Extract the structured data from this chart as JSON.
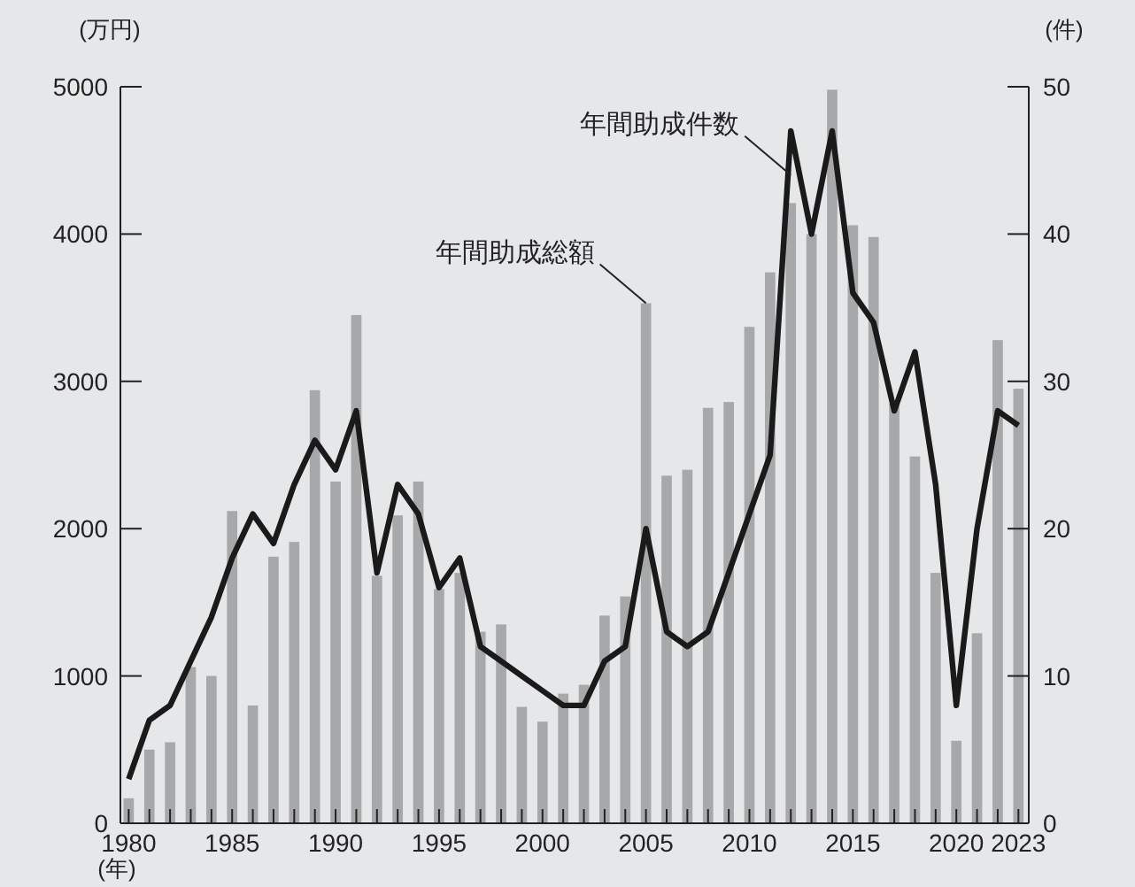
{
  "chart_data": {
    "type": "bar",
    "xlabel": "(年)",
    "ylabel": "(万円)",
    "y2label": "(件)",
    "x": [
      1980,
      1981,
      1982,
      1983,
      1984,
      1985,
      1986,
      1987,
      1988,
      1989,
      1990,
      1991,
      1992,
      1993,
      1994,
      1995,
      1996,
      1997,
      1998,
      1999,
      2000,
      2001,
      2002,
      2003,
      2004,
      2005,
      2006,
      2007,
      2008,
      2009,
      2010,
      2011,
      2012,
      2013,
      2014,
      2015,
      2016,
      2017,
      2018,
      2019,
      2020,
      2021,
      2022,
      2023
    ],
    "series": [
      {
        "color": "#a7a8aa",
        "values": [
          170,
          500,
          550,
          1060,
          1000,
          2120,
          800,
          1810,
          1910,
          2940,
          2320,
          3450,
          1680,
          2090,
          2320,
          1590,
          1700,
          1300,
          1350,
          790,
          690,
          880,
          940,
          1410,
          1540,
          3530,
          2360,
          2400,
          2820,
          2860,
          3370,
          3740,
          4210,
          4000,
          4980,
          4060,
          3980,
          2850,
          2490,
          1700,
          560,
          1290,
          3280,
          2950
        ]
      },
      {
        "type": "line",
        "axis": "y2",
        "color": "#1a1a1a",
        "line_style": "solid",
        "values": [
          3,
          7,
          8,
          11,
          14,
          18,
          21,
          19,
          23,
          26,
          24,
          28,
          17,
          23,
          21,
          16,
          18,
          12,
          11,
          10,
          9,
          8,
          8,
          11,
          12,
          20,
          13,
          12,
          13,
          17,
          21,
          25,
          47,
          40,
          47,
          36,
          34,
          28,
          32,
          23,
          8,
          20,
          28,
          27
        ]
      }
    ],
    "xlim": [
      1979.6,
      2023.5
    ],
    "xticks": [
      1980,
      {
        "value": 1981,
        "label": null
      },
      {
        "value": 1982,
        "label": null
      },
      {
        "value": 1983,
        "label": null
      },
      {
        "value": 1984,
        "label": null
      },
      1985,
      {
        "value": 1986,
        "label": null
      },
      {
        "value": 1987,
        "label": null
      },
      {
        "value": 1988,
        "label": null
      },
      {
        "value": 1989,
        "label": null
      },
      1990,
      {
        "value": 1991,
        "label": null
      },
      {
        "value": 1992,
        "label": null
      },
      {
        "value": 1993,
        "label": null
      },
      {
        "value": 1994,
        "label": null
      },
      1995,
      {
        "value": 1996,
        "label": null
      },
      {
        "value": 1997,
        "label": null
      },
      {
        "value": 1998,
        "label": null
      },
      {
        "value": 1999,
        "label": null
      },
      2000,
      {
        "value": 2001,
        "label": null
      },
      {
        "value": 2002,
        "label": null
      },
      {
        "value": 2003,
        "label": null
      },
      {
        "value": 2004,
        "label": null
      },
      2005,
      {
        "value": 2006,
        "label": null
      },
      {
        "value": 2007,
        "label": null
      },
      {
        "value": 2008,
        "label": null
      },
      {
        "value": 2009,
        "label": null
      },
      2010,
      {
        "value": 2011,
        "label": null
      },
      {
        "value": 2012,
        "label": null
      },
      {
        "value": 2013,
        "label": null
      },
      {
        "value": 2014,
        "label": null
      },
      2015,
      {
        "value": 2016,
        "label": null
      },
      {
        "value": 2017,
        "label": null
      },
      {
        "value": 2018,
        "label": null
      },
      {
        "value": 2019,
        "label": null
      },
      2020,
      {
        "value": 2021,
        "label": null
      },
      {
        "value": 2022,
        "label": null
      },
      2023
    ],
    "ylim": [
      0,
      5000
    ],
    "yticks": [
      0,
      1000,
      2000,
      3000,
      4000,
      5000
    ],
    "y2lim": [
      0,
      50
    ],
    "y2ticks": [
      0,
      10,
      20,
      30,
      40,
      50
    ],
    "grid": false,
    "annotations": [
      {
        "text": "年間助成総額",
        "x": 2005,
        "y": 3530
      },
      {
        "text": "年間助成件数",
        "x": 2012,
        "y": 4400
      }
    ]
  }
}
